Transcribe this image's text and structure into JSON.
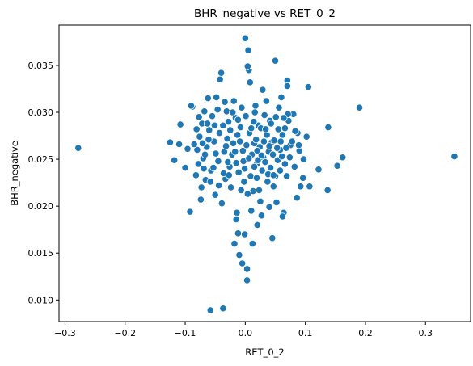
{
  "chart_data": {
    "type": "scatter",
    "title": "BHR_negative vs RET_0_2",
    "xlabel": "RET_0_2",
    "ylabel": "BHR_negative",
    "xlim": [
      -0.31,
      0.375
    ],
    "ylim": [
      0.0077,
      0.0393
    ],
    "xticks": [
      -0.3,
      -0.2,
      -0.1,
      0.0,
      0.1,
      0.2,
      0.3
    ],
    "xtick_labels": [
      "−0.3",
      "−0.2",
      "−0.1",
      "0.0",
      "0.1",
      "0.2",
      "0.3"
    ],
    "yticks": [
      0.01,
      0.015,
      0.02,
      0.025,
      0.03,
      0.035
    ],
    "ytick_labels": [
      "0.010",
      "0.015",
      "0.020",
      "0.025",
      "0.030",
      "0.035"
    ],
    "grid": false,
    "marker_color": "#1f77b4",
    "points": [
      [
        -0.278,
        0.0262
      ],
      [
        0.348,
        0.0253
      ],
      [
        0.19,
        0.0305
      ],
      [
        0.162,
        0.0252
      ],
      [
        0.153,
        0.0243
      ],
      [
        0.138,
        0.0284
      ],
      [
        0.137,
        0.0217
      ],
      [
        0.122,
        0.0239
      ],
      [
        0.105,
        0.0327
      ],
      [
        0.102,
        0.0274
      ],
      [
        0.107,
        0.0221
      ],
      [
        0.092,
        0.0221
      ],
      [
        0.086,
        0.0209
      ],
      [
        0.087,
        0.0278
      ],
      [
        0.08,
        0.0298
      ],
      [
        0.075,
        0.0265
      ],
      [
        0.07,
        0.0334
      ],
      [
        0.07,
        0.0328
      ],
      [
        0.066,
        0.0245
      ],
      [
        0.064,
        0.0193
      ],
      [
        0.062,
        0.0189
      ],
      [
        0.06,
        0.0316
      ],
      [
        0.058,
        0.026
      ],
      [
        0.055,
        0.0282
      ],
      [
        0.05,
        0.0355
      ],
      [
        0.05,
        0.0232
      ],
      [
        0.047,
        0.0221
      ],
      [
        0.045,
        0.0166
      ],
      [
        0.04,
        0.0199
      ],
      [
        0.041,
        0.0291
      ],
      [
        0.038,
        0.0234
      ],
      [
        0.035,
        0.0312
      ],
      [
        0.03,
        0.0252
      ],
      [
        0.029,
        0.0324
      ],
      [
        0.027,
        0.019
      ],
      [
        0.025,
        0.0205
      ],
      [
        0.022,
        0.0286
      ],
      [
        0.02,
        0.018
      ],
      [
        0.019,
        0.0245
      ],
      [
        0.017,
        0.0307
      ],
      [
        0.015,
        0.0267
      ],
      [
        0.012,
        0.016
      ],
      [
        0.01,
        0.0195
      ],
      [
        0.008,
        0.0332
      ],
      [
        0.006,
        0.0345
      ],
      [
        0.005,
        0.0366
      ],
      [
        0.004,
        0.0349
      ],
      [
        0.003,
        0.0133
      ],
      [
        0.003,
        0.0121
      ],
      [
        0.0,
        0.0379
      ],
      [
        -0.001,
        0.017
      ],
      [
        -0.005,
        0.0139
      ],
      [
        -0.01,
        0.0148
      ],
      [
        -0.012,
        0.0171
      ],
      [
        -0.014,
        0.0193
      ],
      [
        -0.015,
        0.0186
      ],
      [
        -0.018,
        0.016
      ],
      [
        -0.008,
        0.0284
      ],
      [
        -0.006,
        0.0305
      ],
      [
        -0.004,
        0.0259
      ],
      [
        -0.003,
        0.0248
      ],
      [
        -0.002,
        0.0226
      ],
      [
        -0.007,
        0.0217
      ],
      [
        -0.011,
        0.0236
      ],
      [
        -0.013,
        0.0276
      ],
      [
        -0.016,
        0.0294
      ],
      [
        -0.019,
        0.0312
      ],
      [
        -0.02,
        0.0267
      ],
      [
        -0.022,
        0.0255
      ],
      [
        -0.024,
        0.022
      ],
      [
        -0.026,
        0.0242
      ],
      [
        -0.028,
        0.029
      ],
      [
        -0.03,
        0.0272
      ],
      [
        -0.031,
        0.0301
      ],
      [
        -0.033,
        0.0229
      ],
      [
        -0.035,
        0.0258
      ],
      [
        -0.037,
        0.0286
      ],
      [
        -0.039,
        0.0203
      ],
      [
        -0.04,
        0.0342
      ],
      [
        -0.042,
        0.0335
      ],
      [
        -0.045,
        0.0248
      ],
      [
        -0.048,
        0.0316
      ],
      [
        -0.05,
        0.0212
      ],
      [
        -0.052,
        0.0269
      ],
      [
        -0.055,
        0.0296
      ],
      [
        -0.057,
        0.0238
      ],
      [
        -0.06,
        0.0281
      ],
      [
        -0.062,
        0.0315
      ],
      [
        -0.064,
        0.0263
      ],
      [
        -0.066,
        0.0228
      ],
      [
        -0.068,
        0.0301
      ],
      [
        -0.07,
        0.0251
      ],
      [
        -0.072,
        0.0288
      ],
      [
        -0.074,
        0.0207
      ],
      [
        -0.076,
        0.0274
      ],
      [
        -0.078,
        0.0245
      ],
      [
        -0.08,
        0.026
      ],
      [
        -0.082,
        0.0233
      ],
      [
        -0.085,
        0.0266
      ],
      [
        -0.088,
        0.0306
      ],
      [
        -0.09,
        0.0307
      ],
      [
        -0.092,
        0.0194
      ],
      [
        -0.096,
        0.0261
      ],
      [
        -0.1,
        0.0241
      ],
      [
        -0.108,
        0.0287
      ],
      [
        -0.11,
        0.0266
      ],
      [
        -0.118,
        0.0249
      ],
      [
        -0.125,
        0.0268
      ],
      [
        0.052,
        0.0204
      ],
      [
        0.044,
        0.0268
      ],
      [
        0.036,
        0.0276
      ],
      [
        0.032,
        0.0297
      ],
      [
        0.028,
        0.0238
      ],
      [
        0.024,
        0.0263
      ],
      [
        0.021,
        0.0249
      ],
      [
        0.018,
        0.0271
      ],
      [
        0.014,
        0.029
      ],
      [
        0.011,
        0.0255
      ],
      [
        0.009,
        0.0232
      ],
      [
        0.007,
        0.0278
      ],
      [
        0.002,
        0.0265
      ],
      [
        -0.001,
        0.024
      ],
      [
        0.013,
        0.0216
      ],
      [
        0.016,
        0.03
      ],
      [
        0.026,
        0.0283
      ],
      [
        0.033,
        0.0247
      ],
      [
        0.039,
        0.0258
      ],
      [
        0.043,
        0.0288
      ],
      [
        0.048,
        0.027
      ],
      [
        0.054,
        0.0249
      ],
      [
        0.058,
        0.0238
      ],
      [
        0.062,
        0.0276
      ],
      [
        0.068,
        0.0262
      ],
      [
        0.072,
        0.0291
      ],
      [
        0.074,
        0.0252
      ],
      [
        0.078,
        0.0269
      ],
      [
        0.082,
        0.0242
      ],
      [
        0.09,
        0.0259
      ],
      [
        0.096,
        0.023
      ],
      [
        -0.034,
        0.0311
      ],
      [
        -0.043,
        0.0278
      ],
      [
        -0.049,
        0.0256
      ],
      [
        -0.053,
        0.0241
      ],
      [
        -0.058,
        0.0226
      ],
      [
        -0.063,
        0.0288
      ],
      [
        -0.067,
        0.0255
      ],
      [
        -0.071,
        0.0267
      ],
      [
        -0.077,
        0.0295
      ],
      [
        -0.081,
        0.0282
      ],
      [
        -0.044,
        0.0222
      ],
      [
        -0.036,
        0.0235
      ],
      [
        -0.029,
        0.0247
      ],
      [
        -0.025,
        0.0281
      ],
      [
        -0.021,
        0.03
      ],
      [
        -0.017,
        0.0258
      ],
      [
        -0.009,
        0.0269
      ],
      [
        0.001,
        0.0296
      ],
      [
        0.004,
        0.0213
      ],
      [
        0.006,
        0.0251
      ],
      [
        0.01,
        0.0283
      ],
      [
        0.019,
        0.023
      ],
      [
        0.023,
        0.0217
      ],
      [
        0.031,
        0.0269
      ],
      [
        0.037,
        0.0226
      ],
      [
        0.042,
        0.0241
      ],
      [
        0.046,
        0.0255
      ],
      [
        0.051,
        0.0295
      ],
      [
        0.056,
        0.0305
      ],
      [
        0.061,
        0.0253
      ],
      [
        0.066,
        0.0283
      ],
      [
        -0.058,
        0.0089
      ],
      [
        -0.037,
        0.0091
      ],
      [
        0.071,
        0.0298
      ],
      [
        0.083,
        0.028
      ],
      [
        0.089,
        0.0265
      ],
      [
        0.097,
        0.025
      ],
      [
        -0.015,
        0.0246
      ],
      [
        -0.012,
        0.0292
      ],
      [
        -0.027,
        0.0233
      ],
      [
        -0.032,
        0.0264
      ],
      [
        -0.046,
        0.0303
      ],
      [
        -0.051,
        0.0286
      ],
      [
        -0.061,
        0.0271
      ],
      [
        -0.069,
        0.024
      ],
      [
        -0.073,
        0.022
      ],
      [
        0.015,
        0.0242
      ],
      [
        0.02,
        0.0259
      ],
      [
        0.027,
        0.0254
      ],
      [
        0.034,
        0.0282
      ],
      [
        0.04,
        0.0264
      ],
      [
        0.047,
        0.0233
      ],
      [
        0.053,
        0.0262
      ],
      [
        0.059,
        0.0269
      ],
      [
        0.064,
        0.0294
      ],
      [
        0.069,
        0.0232
      ]
    ]
  }
}
